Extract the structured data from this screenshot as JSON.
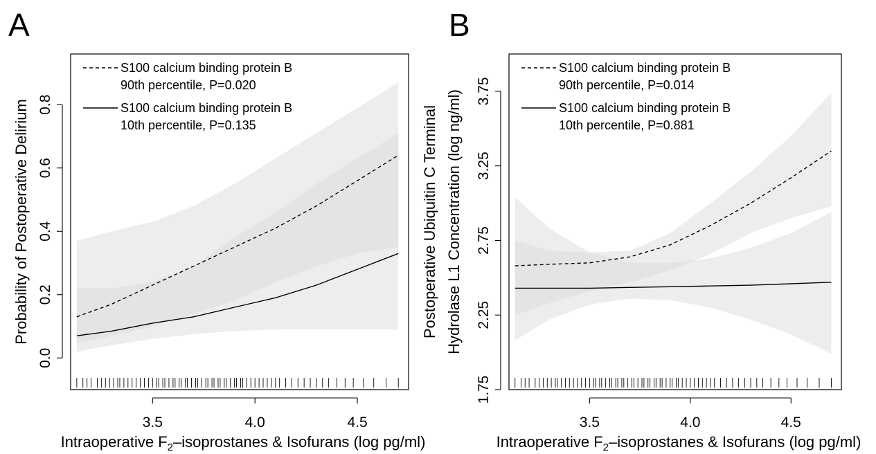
{
  "chart_data": [
    {
      "panel": "A",
      "type": "line",
      "xlabel_main": "Intraoperative F",
      "xlabel_sub": "2",
      "xlabel_rest": "–isoprostanes & Isofurans (log pg/ml)",
      "ylabel": "Probability of Postoperative Delirium",
      "ylabel_line2": "",
      "xlim": [
        3.1,
        4.75
      ],
      "ylim": [
        -0.1,
        0.96
      ],
      "xticks": [
        3.5,
        4.0,
        4.5
      ],
      "xtick_labels": [
        "3.5",
        "4.0",
        "4.5"
      ],
      "yticks": [
        0.0,
        0.2,
        0.4,
        0.6,
        0.8
      ],
      "ytick_labels": [
        "0.0",
        "0.2",
        "0.4",
        "0.6",
        "0.8"
      ],
      "legend": [
        {
          "line1": "S100 calcium binding protein B",
          "line2": "90th percentile, P=0.020",
          "style": "dashed"
        },
        {
          "line1": "S100 calcium binding protein B",
          "line2": "10th percentile, P=0.135",
          "style": "solid"
        }
      ],
      "series": [
        {
          "style": "dashed",
          "x": [
            3.13,
            3.3,
            3.5,
            3.7,
            3.9,
            4.1,
            4.3,
            4.5,
            4.7
          ],
          "y": [
            0.13,
            0.17,
            0.23,
            0.29,
            0.35,
            0.41,
            0.48,
            0.56,
            0.64
          ],
          "ci_lower": [
            0.045,
            0.07,
            0.1,
            0.14,
            0.18,
            0.24,
            0.29,
            0.33,
            0.35
          ],
          "ci_upper": [
            0.22,
            0.22,
            0.24,
            0.29,
            0.38,
            0.46,
            0.55,
            0.63,
            0.71
          ]
        },
        {
          "style": "solid",
          "x": [
            3.13,
            3.3,
            3.5,
            3.7,
            3.9,
            4.1,
            4.3,
            4.5,
            4.7
          ],
          "y": [
            0.07,
            0.085,
            0.11,
            0.13,
            0.16,
            0.19,
            0.23,
            0.28,
            0.33
          ],
          "ci_lower": [
            0.02,
            0.04,
            0.06,
            0.075,
            0.085,
            0.09,
            0.09,
            0.09,
            0.09
          ],
          "ci_upper": [
            0.37,
            0.4,
            0.43,
            0.48,
            0.55,
            0.63,
            0.71,
            0.79,
            0.87
          ]
        }
      ],
      "rug": [
        3.13,
        3.16,
        3.18,
        3.2,
        3.23,
        3.25,
        3.27,
        3.29,
        3.31,
        3.33,
        3.34,
        3.36,
        3.38,
        3.4,
        3.42,
        3.44,
        3.46,
        3.48,
        3.5,
        3.52,
        3.53,
        3.55,
        3.56,
        3.58,
        3.6,
        3.61,
        3.63,
        3.64,
        3.66,
        3.67,
        3.69,
        3.71,
        3.72,
        3.74,
        3.76,
        3.77,
        3.79,
        3.8,
        3.82,
        3.83,
        3.85,
        3.86,
        3.88,
        3.9,
        3.91,
        3.93,
        3.94,
        3.96,
        3.98,
        4.0,
        4.02,
        4.04,
        4.06,
        4.08,
        4.1,
        4.12,
        4.15,
        4.18,
        4.21,
        4.24,
        4.27,
        4.3,
        4.33,
        4.36,
        4.4,
        4.44,
        4.48,
        4.53,
        4.58,
        4.64,
        4.7
      ]
    },
    {
      "panel": "B",
      "type": "line",
      "xlabel_main": "Intraoperative F",
      "xlabel_sub": "2",
      "xlabel_rest": "–isoprostanes & Isofurans (log pg/ml)",
      "ylabel": "Postoperative Ubiquitin C Terminal",
      "ylabel_line2": "Hydrolase L1 Concentration (log ng/ml)",
      "xlim": [
        3.1,
        4.75
      ],
      "ylim": [
        1.75,
        4.0
      ],
      "xticks": [
        3.5,
        4.0,
        4.5
      ],
      "xtick_labels": [
        "3.5",
        "4.0",
        "4.5"
      ],
      "yticks": [
        1.75,
        2.25,
        2.75,
        3.25,
        3.75
      ],
      "ytick_labels": [
        "1.75",
        "2.25",
        "2.75",
        "3.25",
        "3.75"
      ],
      "legend": [
        {
          "line1": "S100 calcium binding protein B",
          "line2": "90th percentile, P=0.014",
          "style": "dashed"
        },
        {
          "line1": "S100 calcium binding protein B",
          "line2": "10th percentile, P=0.881",
          "style": "solid"
        }
      ],
      "series": [
        {
          "style": "dashed",
          "x": [
            3.13,
            3.3,
            3.5,
            3.7,
            3.9,
            4.1,
            4.3,
            4.5,
            4.7
          ],
          "y": [
            2.58,
            2.59,
            2.6,
            2.64,
            2.72,
            2.85,
            3.0,
            3.17,
            3.35
          ],
          "ci_lower": [
            2.25,
            2.33,
            2.41,
            2.47,
            2.55,
            2.66,
            2.8,
            2.9,
            2.98
          ],
          "ci_upper": [
            2.75,
            2.68,
            2.67,
            2.68,
            2.8,
            3.0,
            3.21,
            3.45,
            3.74
          ]
        },
        {
          "style": "solid",
          "x": [
            3.13,
            3.3,
            3.5,
            3.7,
            3.9,
            4.1,
            4.3,
            4.5,
            4.7
          ],
          "y": [
            2.43,
            2.43,
            2.43,
            2.435,
            2.44,
            2.445,
            2.45,
            2.46,
            2.47
          ],
          "ci_lower": [
            2.08,
            2.22,
            2.32,
            2.36,
            2.35,
            2.3,
            2.22,
            2.12,
            1.99
          ],
          "ci_upper": [
            3.04,
            2.83,
            2.67,
            2.6,
            2.6,
            2.63,
            2.7,
            2.8,
            2.94
          ]
        }
      ],
      "rug": [
        3.13,
        3.16,
        3.18,
        3.2,
        3.23,
        3.25,
        3.27,
        3.29,
        3.31,
        3.33,
        3.34,
        3.36,
        3.38,
        3.4,
        3.42,
        3.44,
        3.46,
        3.48,
        3.5,
        3.52,
        3.53,
        3.55,
        3.56,
        3.58,
        3.6,
        3.61,
        3.63,
        3.64,
        3.66,
        3.67,
        3.69,
        3.71,
        3.72,
        3.74,
        3.76,
        3.77,
        3.79,
        3.8,
        3.82,
        3.83,
        3.85,
        3.86,
        3.88,
        3.9,
        3.91,
        3.93,
        3.94,
        3.96,
        3.98,
        4.0,
        4.02,
        4.04,
        4.06,
        4.08,
        4.1,
        4.12,
        4.15,
        4.18,
        4.21,
        4.24,
        4.27,
        4.3,
        4.33,
        4.36,
        4.4,
        4.44,
        4.48,
        4.53,
        4.58,
        4.64,
        4.7
      ]
    }
  ],
  "colors": {
    "band_light": "#eeeeee",
    "band_mid": "#dddddd",
    "line": "#000000"
  }
}
